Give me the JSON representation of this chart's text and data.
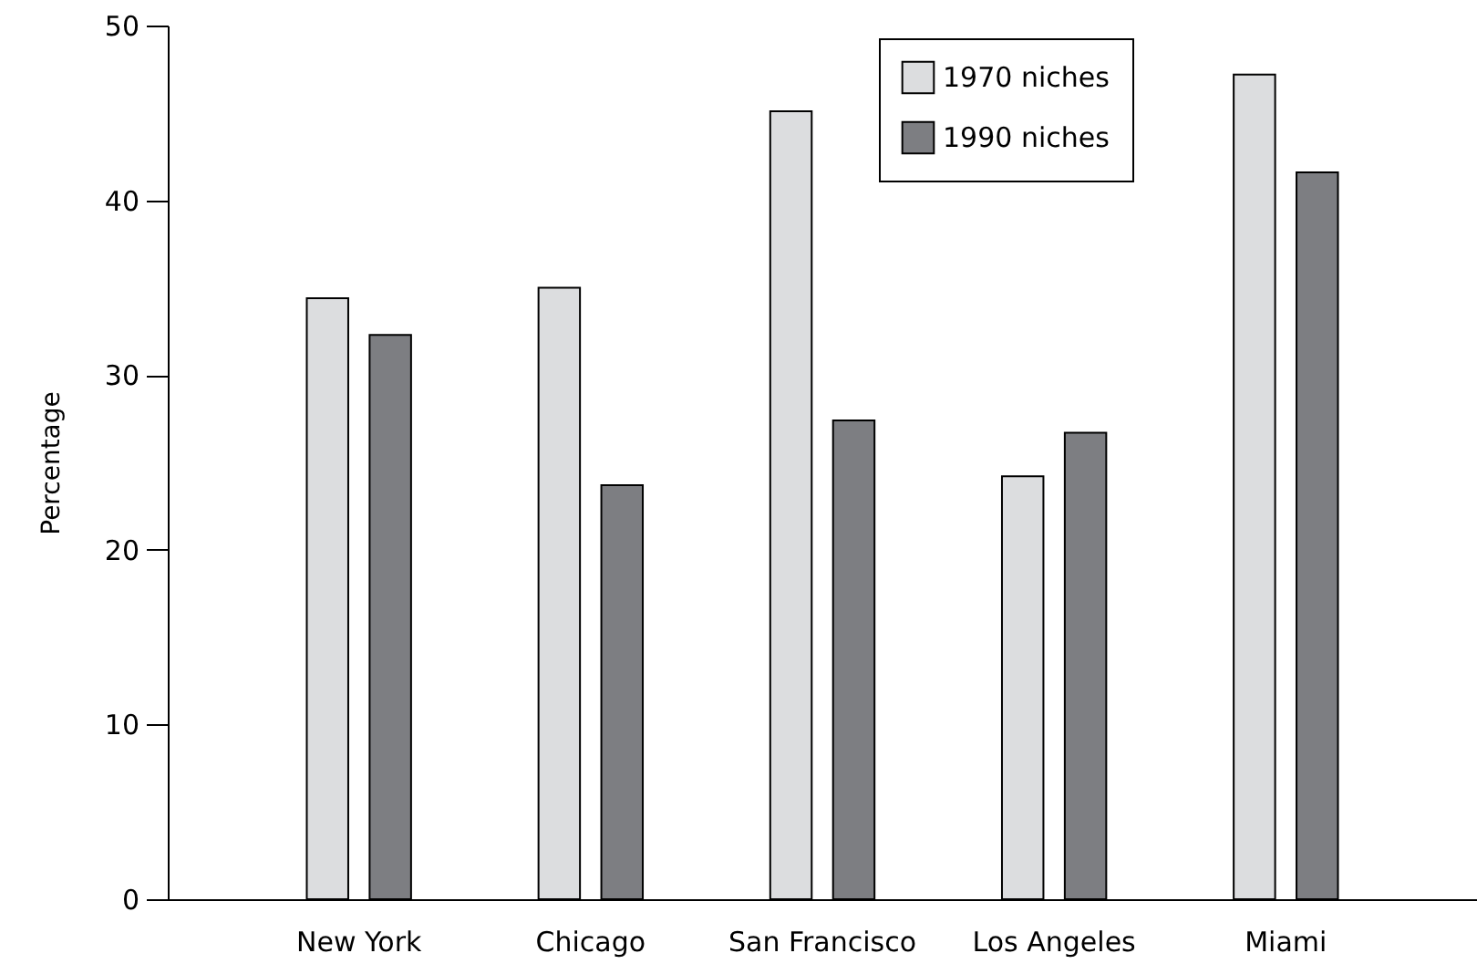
{
  "chart_data": {
    "type": "bar",
    "ylabel": "Percentage",
    "categories": [
      "New York",
      "Chicago",
      "San Francisco",
      "Los Angeles",
      "Miami"
    ],
    "series": [
      {
        "name": "1970 niches",
        "color": "#dcdddf",
        "values": [
          34.4,
          35.0,
          45.1,
          24.2,
          47.2
        ]
      },
      {
        "name": "1990 niches",
        "color": "#7d7e82",
        "values": [
          32.3,
          23.7,
          27.4,
          26.7,
          41.6
        ]
      }
    ],
    "ylim": [
      0,
      50
    ],
    "yticks": [
      0,
      10,
      20,
      30,
      40,
      50
    ],
    "grid": false,
    "legend": "top right"
  }
}
